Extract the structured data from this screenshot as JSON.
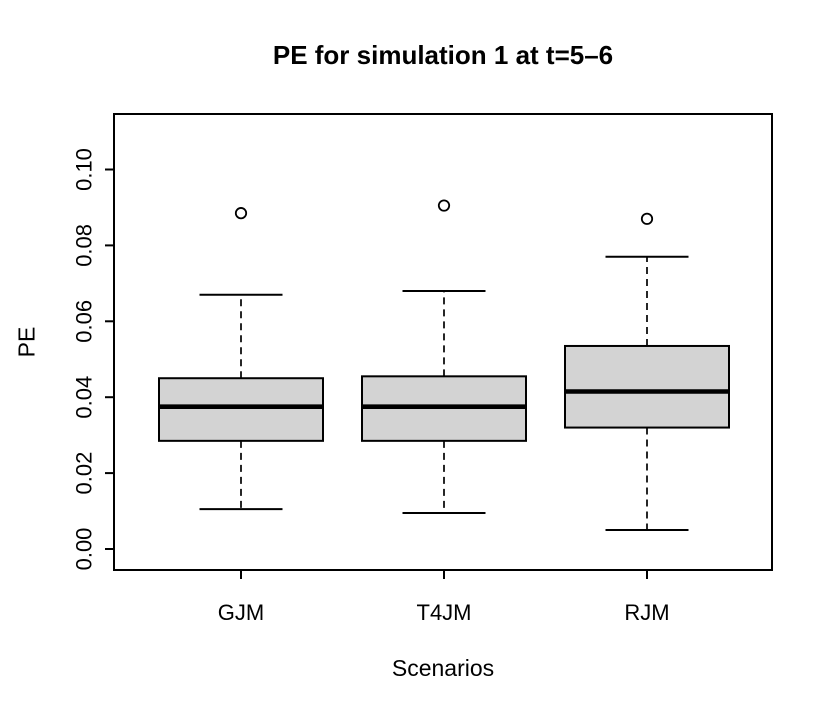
{
  "chart_data": {
    "type": "boxplot",
    "title": "PE for simulation 1 at t=5–6",
    "xlabel": "Scenarios",
    "ylabel": "PE",
    "categories": [
      "GJM",
      "T4JM",
      "RJM"
    ],
    "series": [
      {
        "name": "GJM",
        "whisker_low": 0.0105,
        "q1": 0.0285,
        "median": 0.0375,
        "q3": 0.045,
        "whisker_high": 0.067,
        "outliers": [
          0.0885
        ]
      },
      {
        "name": "T4JM",
        "whisker_low": 0.0095,
        "q1": 0.0285,
        "median": 0.0375,
        "q3": 0.0455,
        "whisker_high": 0.068,
        "outliers": [
          0.0905
        ]
      },
      {
        "name": "RJM",
        "whisker_low": 0.005,
        "q1": 0.032,
        "median": 0.0415,
        "q3": 0.0535,
        "whisker_high": 0.077,
        "outliers": [
          0.087
        ]
      }
    ],
    "y_axis": {
      "ticks": [
        0.0,
        0.02,
        0.04,
        0.06,
        0.08,
        0.1
      ],
      "tick_labels": [
        "0.00",
        "0.02",
        "0.04",
        "0.06",
        "0.08",
        "0.10"
      ],
      "ylim": [
        0.0,
        0.1
      ],
      "tick_label_rotation_deg": -90
    },
    "grid": "off",
    "legend": "none",
    "style": {
      "box_fill": "#D3D3D3",
      "box_stroke": "#000000",
      "median_color": "#000000",
      "whisker_style": "dashed",
      "background": "#FFFFFF",
      "frame": "on"
    }
  }
}
